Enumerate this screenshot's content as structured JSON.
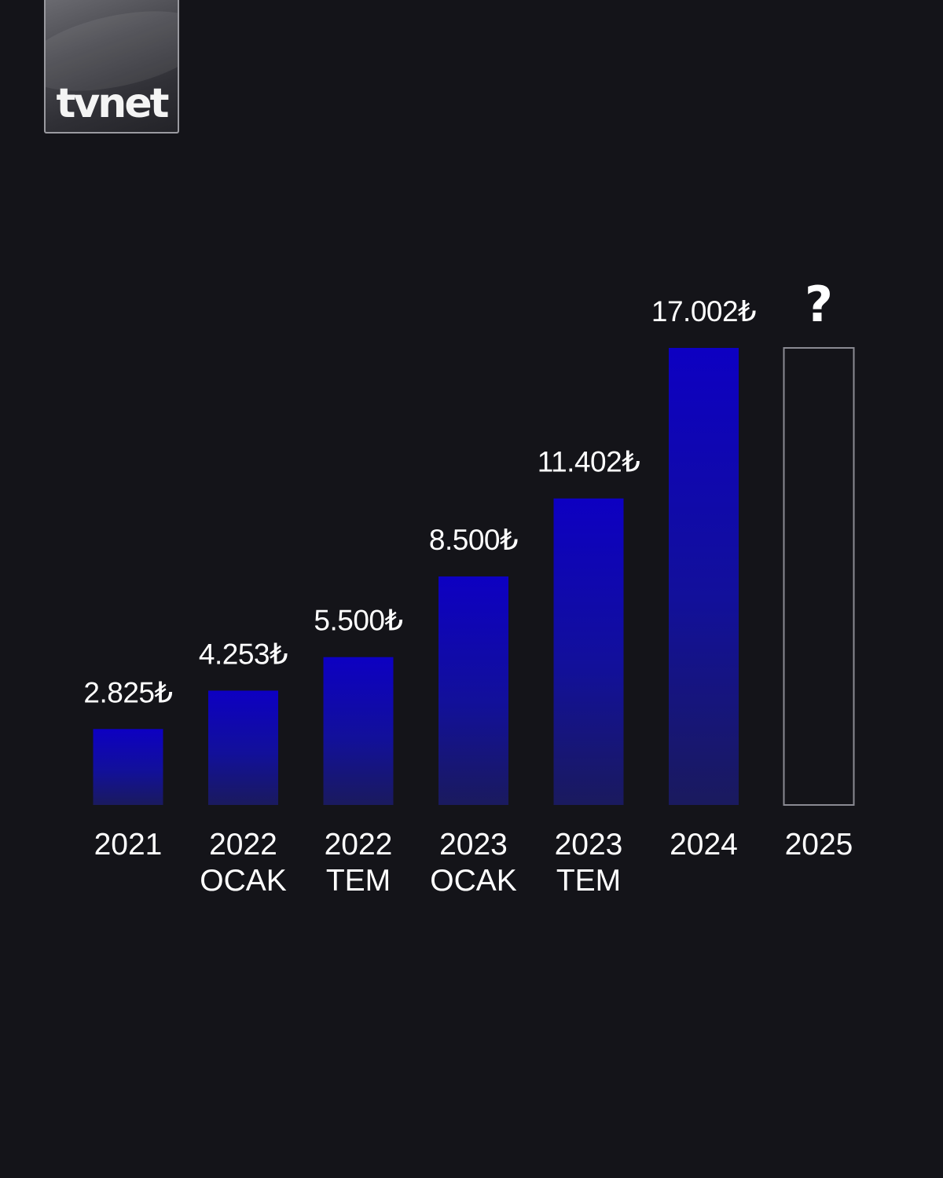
{
  "logo": {
    "text": "tvnet"
  },
  "colors": {
    "background": "#141419",
    "bar_top": "#0d00c2",
    "bar_bottom": "#1a1a5e",
    "text": "#ffffff",
    "empty_bar_border": "#8a8a92"
  },
  "chart_data": {
    "type": "bar",
    "title": "",
    "xlabel": "",
    "ylabel": "",
    "grid": false,
    "ylim": [
      0,
      17002
    ],
    "categories": [
      {
        "line1": "2021",
        "line2": ""
      },
      {
        "line1": "2022",
        "line2": "OCAK"
      },
      {
        "line1": "2022",
        "line2": "TEM"
      },
      {
        "line1": "2023",
        "line2": "OCAK"
      },
      {
        "line1": "2023",
        "line2": "TEM"
      },
      {
        "line1": "2024",
        "line2": ""
      },
      {
        "line1": "2025",
        "line2": ""
      }
    ],
    "values": [
      2825,
      4253,
      5500,
      8500,
      11402,
      17002,
      null
    ],
    "value_labels": [
      "2.825₺",
      "4.253₺",
      "5.500₺",
      "8.500₺",
      "11.402₺",
      "17.002₺",
      "?"
    ]
  }
}
